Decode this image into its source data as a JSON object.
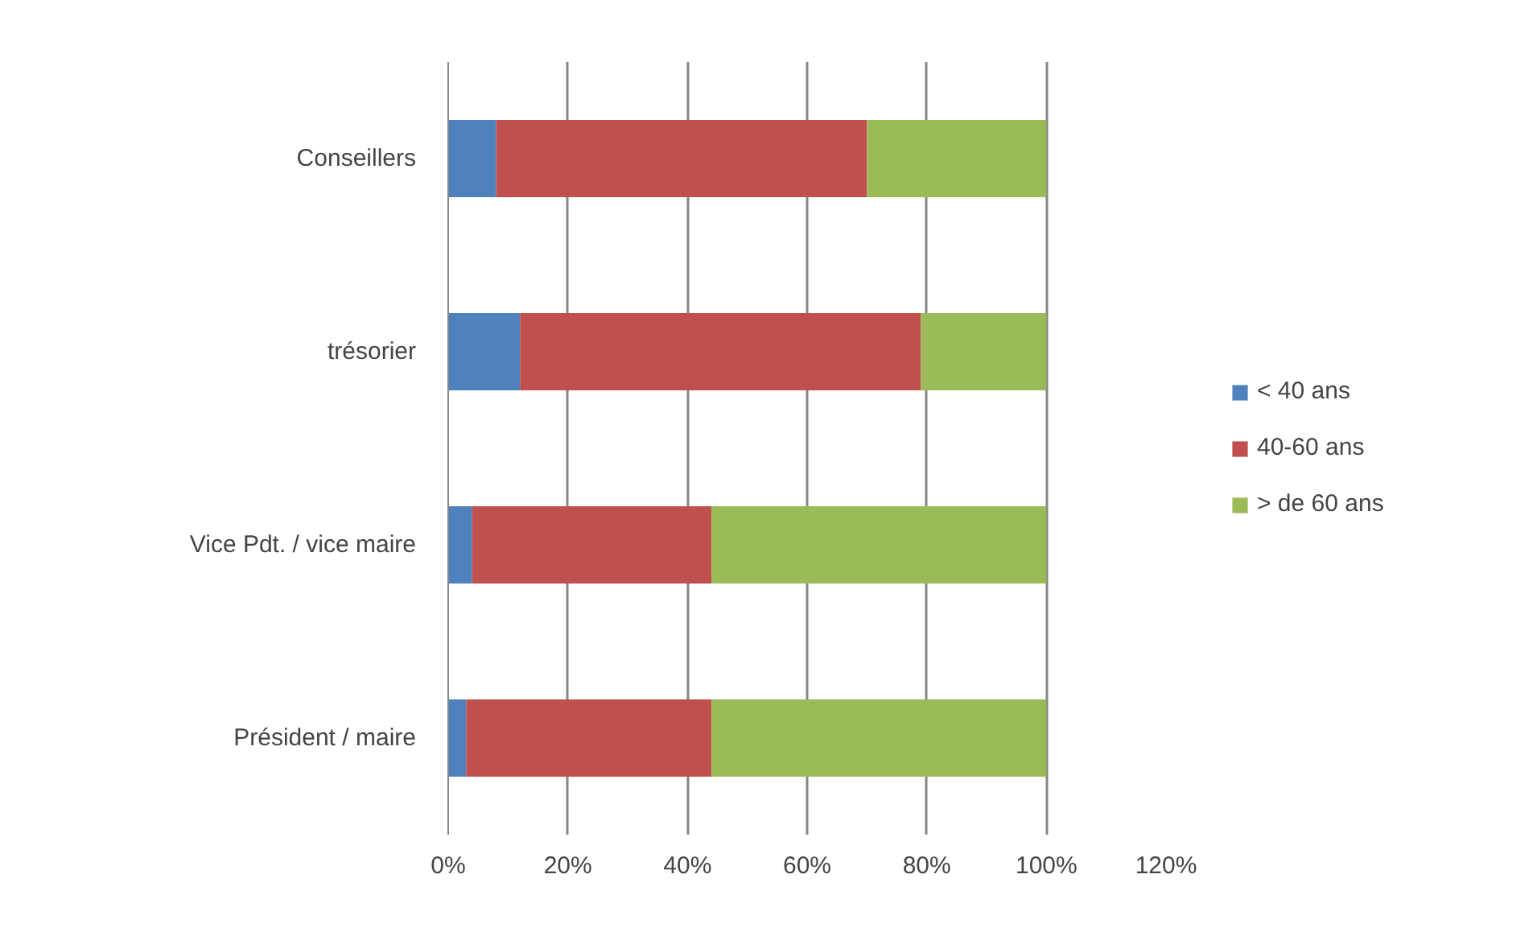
{
  "chart_data": {
    "type": "bar",
    "orientation": "horizontal",
    "stacked": true,
    "categories": [
      "Conseillers",
      "trésorier",
      "Vice Pdt. / vice maire",
      "Président / maire"
    ],
    "series": [
      {
        "name": "< 40 ans",
        "color": "#4f81bd",
        "values": [
          8,
          12,
          4,
          3
        ]
      },
      {
        "name": "40-60 ans",
        "color": "#c0504d",
        "values": [
          62,
          67,
          40,
          41
        ]
      },
      {
        "name": "> de 60 ans",
        "color": "#9bbb59",
        "values": [
          30,
          21,
          56,
          56
        ]
      }
    ],
    "xlim": [
      0,
      120
    ],
    "xticks": [
      {
        "value": 0,
        "label": "0%"
      },
      {
        "value": 20,
        "label": "20%"
      },
      {
        "value": 40,
        "label": "40%"
      },
      {
        "value": 60,
        "label": "60%"
      },
      {
        "value": 80,
        "label": "80%"
      },
      {
        "value": 100,
        "label": "100%"
      },
      {
        "value": 120,
        "label": "120%"
      }
    ],
    "grid": "x",
    "legend": "right"
  }
}
